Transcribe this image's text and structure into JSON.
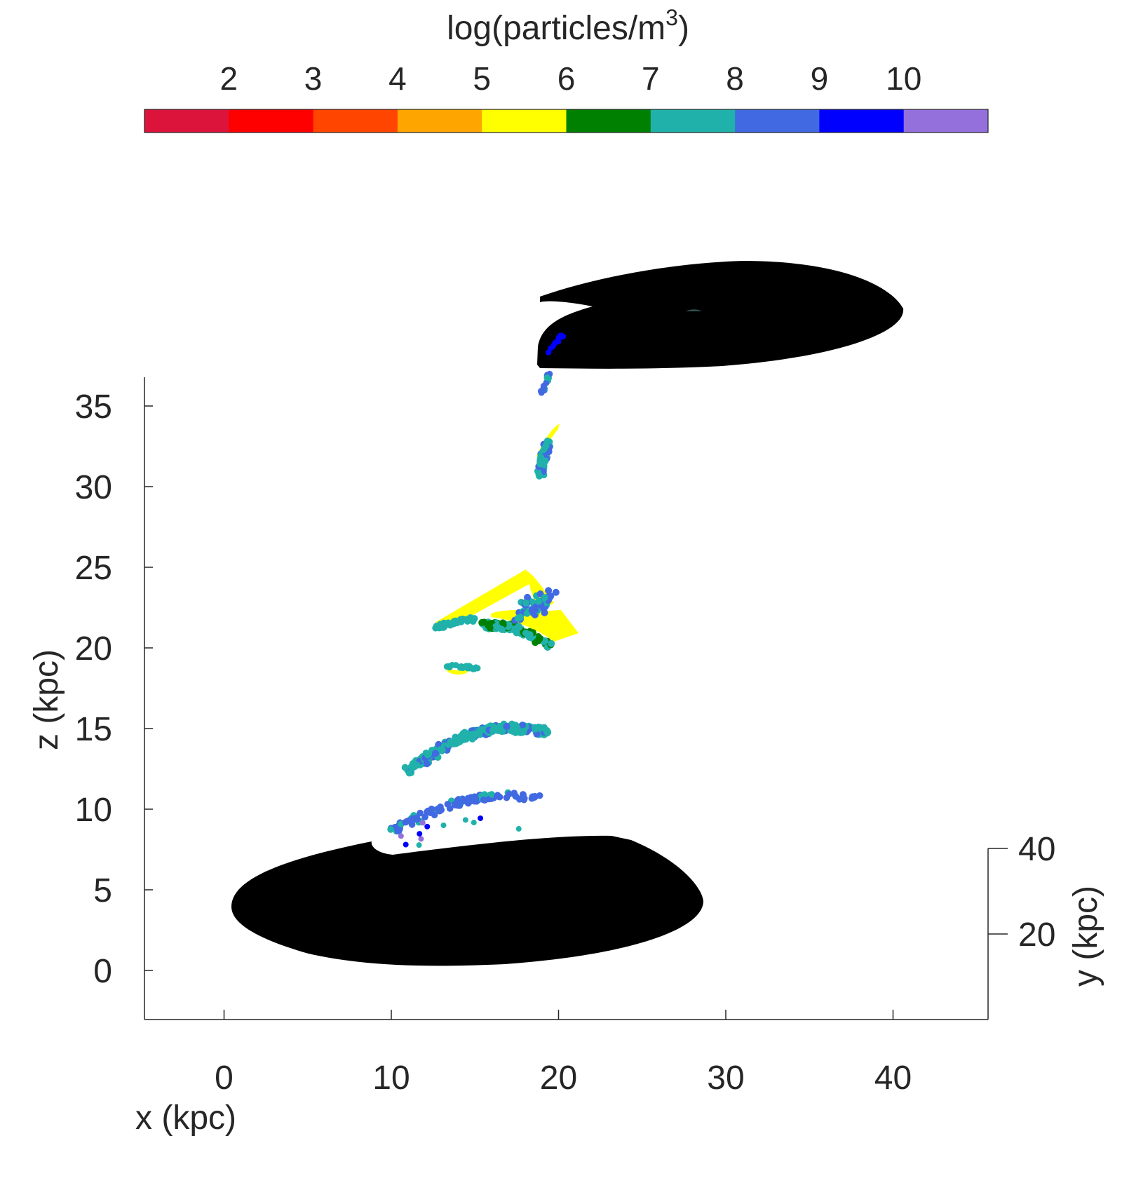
{
  "chart_data": {
    "type": "scatter",
    "title": "",
    "xlabel": "x (kpc)",
    "ylabel": "z (kpc)",
    "zlabel": "y (kpc)",
    "xlim": [
      -5,
      46
    ],
    "zlim": [
      -3,
      37
    ],
    "x_ticks": [
      0,
      10,
      20,
      30,
      40
    ],
    "z_ticks": [
      0,
      5,
      10,
      15,
      20,
      25,
      30,
      35
    ],
    "y_ticks": [
      20,
      40
    ],
    "grid": false,
    "colorbar": {
      "label_text": "log(particles/m",
      "label_sup": "3",
      "label_close": ")",
      "location": "top",
      "ticks": [
        "2",
        "3",
        "4",
        "5",
        "6",
        "7",
        "8",
        "9",
        "10"
      ],
      "colors": [
        "#DC143C",
        "#FF0000",
        "#FF4500",
        "#FFA500",
        "#FFFF00",
        "#008000",
        "#20B2AA",
        "#4169E1",
        "#0000FF",
        "#9370DB"
      ]
    },
    "galaxies": [
      {
        "name": "",
        "color": "#000000",
        "center_x": 14.5,
        "center_z": 3.9,
        "note": ""
      },
      {
        "name": "",
        "color": "#000000",
        "center_x": 27,
        "center_z": 41.5,
        "note": ""
      }
    ],
    "tail_segments": [
      {
        "x_range": [
          10,
          19.5
        ],
        "z_range": [
          7.8,
          11.2
        ],
        "log_density": [
          7,
          8,
          9,
          10
        ]
      },
      {
        "x_range": [
          11,
          19.5
        ],
        "z_range": [
          12.2,
          15.3
        ],
        "log_density": [
          6,
          7
        ]
      },
      {
        "x_range": [
          13,
          15.2
        ],
        "z_range": [
          18.4,
          18.9
        ],
        "log_density": [
          5,
          6
        ]
      },
      {
        "x_range": [
          12.5,
          21.2
        ],
        "z_range": [
          20,
          24.5
        ],
        "log_density": [
          5,
          6,
          7
        ]
      },
      {
        "x_range": [
          18.5,
          20.2
        ],
        "z_range": [
          30.7,
          33.7
        ],
        "log_density": [
          5,
          6,
          7
        ]
      },
      {
        "x_range": [
          19,
          19.6
        ],
        "z_range": [
          35.8,
          37.2
        ],
        "log_density": [
          6,
          7
        ]
      },
      {
        "x_range": [
          19.2,
          20.5
        ],
        "z_range": [
          38,
          39.5
        ],
        "log_density": [
          8
        ]
      }
    ]
  }
}
